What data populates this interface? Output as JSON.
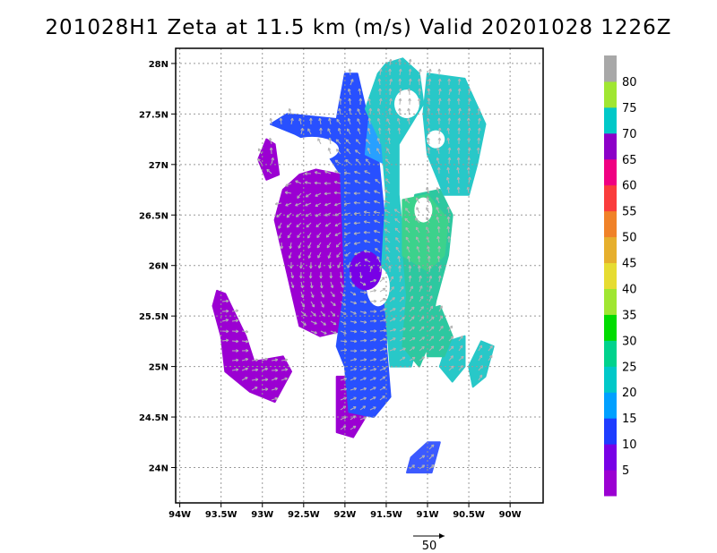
{
  "title": "201028H1  Zeta at 11.5 km (m/s) Valid 20201028  1226Z",
  "chart_data": {
    "type": "heatmap",
    "title": "201028H1  Zeta at 11.5 km (m/s) Valid 20201028  1226Z",
    "xlabel": "",
    "ylabel": "",
    "xlim": [
      -94.05,
      -89.6
    ],
    "ylim": [
      23.65,
      28.15
    ],
    "x_ticks": [
      -94,
      -93.5,
      -93,
      -92.5,
      -92,
      -91.5,
      -91,
      -90.5,
      -90
    ],
    "x_tick_labels": [
      "94W",
      "93.5W",
      "93W",
      "92.5W",
      "92W",
      "91.5W",
      "91W",
      "90.5W",
      "90W"
    ],
    "y_ticks": [
      24,
      24.5,
      25,
      25.5,
      26,
      26.5,
      27,
      27.5,
      28
    ],
    "y_tick_labels": [
      "24N",
      "24.5N",
      "25N",
      "25.5N",
      "26N",
      "26.5N",
      "27N",
      "27.5N",
      "28N"
    ],
    "grid": true,
    "colorbar": {
      "labels": [
        "5",
        "10",
        "15",
        "20",
        "25",
        "30",
        "35",
        "40",
        "45",
        "50",
        "55",
        "60",
        "65",
        "70",
        "75",
        "80"
      ],
      "colors": [
        "#9b00d2",
        "#7800e6",
        "#1e3cff",
        "#00a0ff",
        "#00c8c8",
        "#00d28c",
        "#00dc00",
        "#a0e632",
        "#e6dc32",
        "#e6af2d",
        "#f08228",
        "#fa3c3c",
        "#f00082",
        "#8c00c8",
        "#00c8c8",
        "#a0e632",
        "#a8a8a8"
      ]
    },
    "vector_reference": {
      "label": "50",
      "value": 50
    },
    "vortex_center": [
      -91.75,
      25.95
    ]
  }
}
